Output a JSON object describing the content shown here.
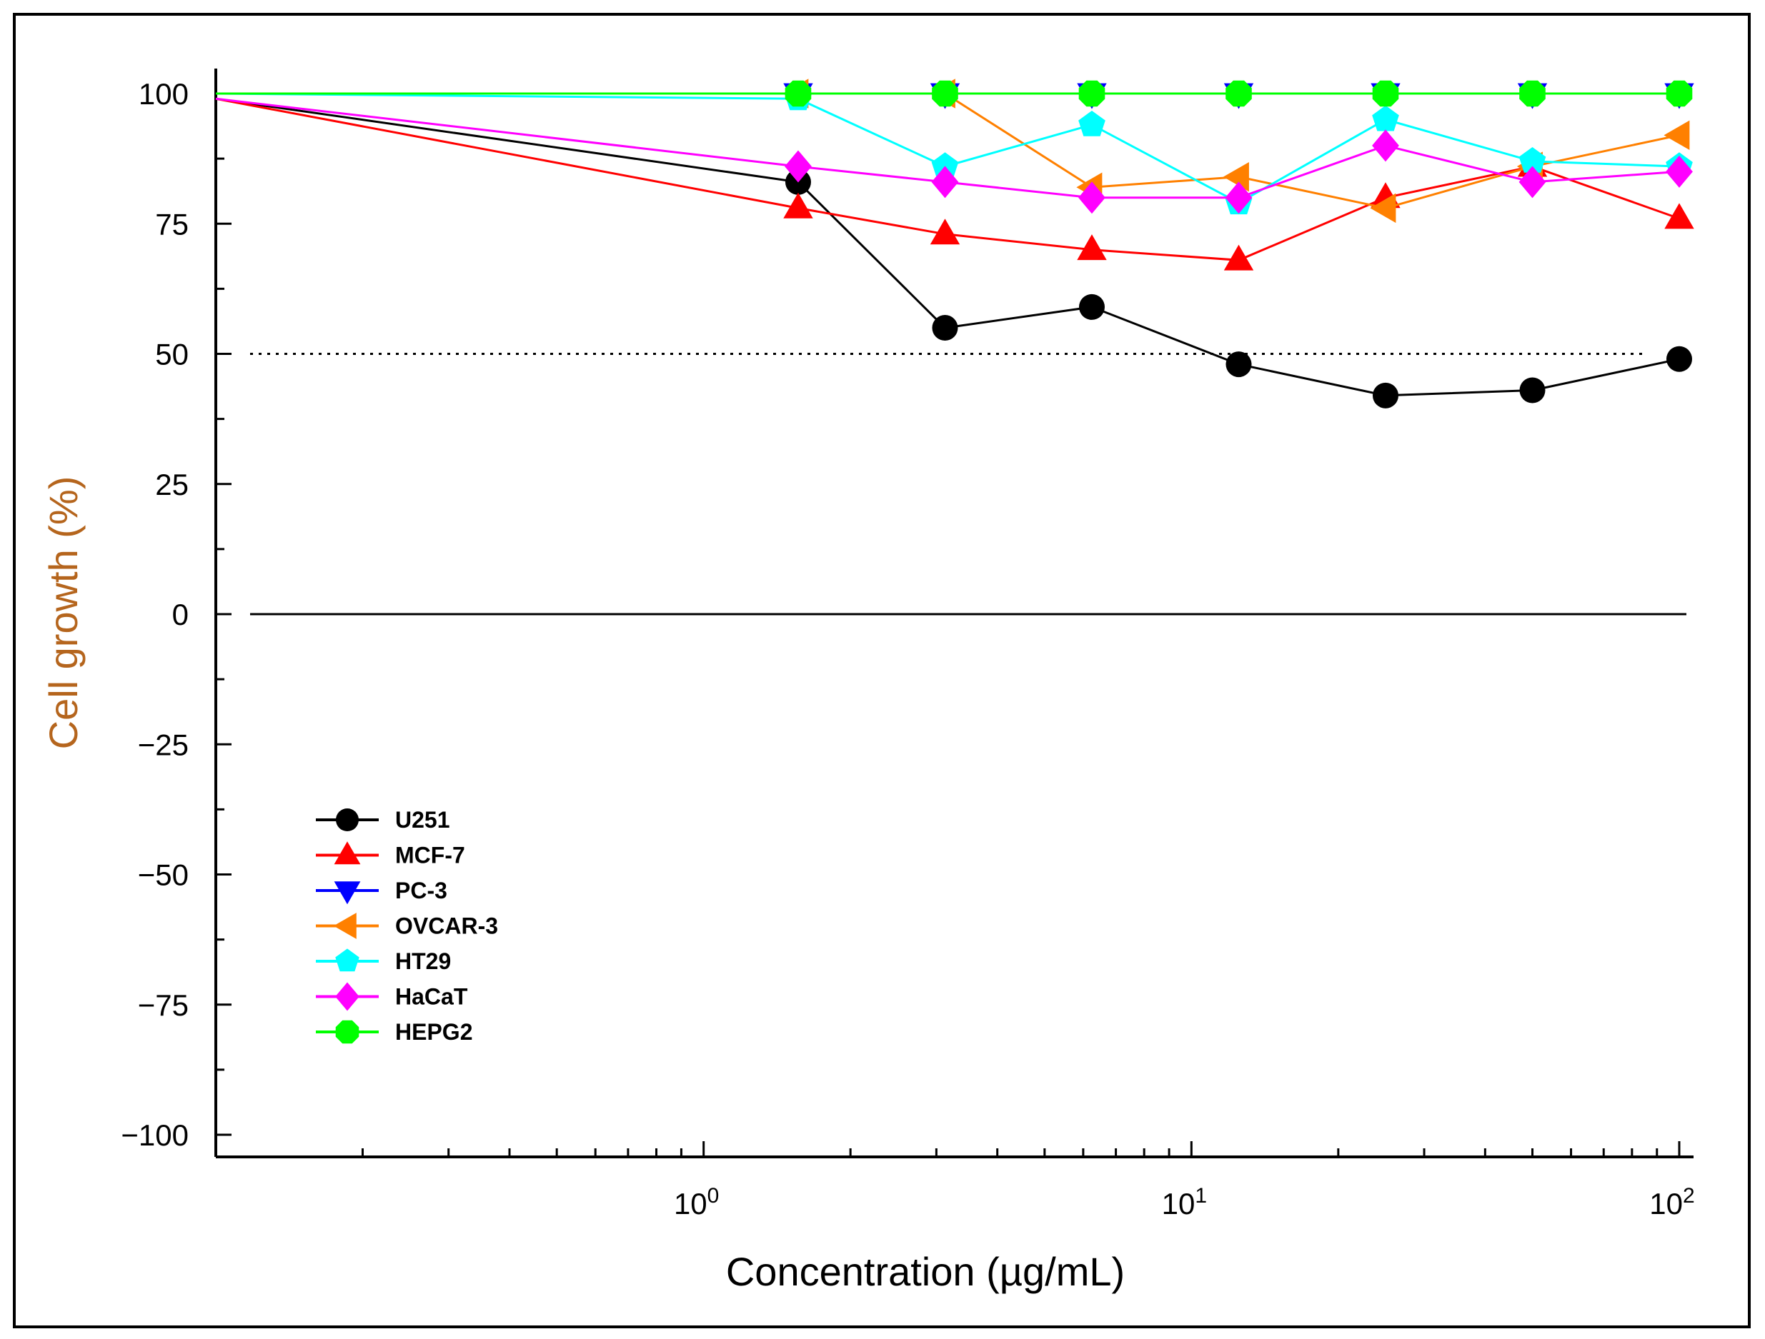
{
  "chart_data": {
    "type": "line",
    "xscale": "log",
    "xlim": [
      0.1,
      100
    ],
    "ylim": [
      -100,
      100
    ],
    "yticks": [
      100,
      75,
      50,
      25,
      0,
      -25,
      -50,
      -75,
      -100
    ],
    "ytick_labels": [
      "100",
      "75",
      "50",
      "25",
      "0",
      "−25",
      "−50",
      "−75",
      "−100"
    ],
    "xticks": [
      {
        "base": "10",
        "exp": "0"
      },
      {
        "base": "10",
        "exp": "1"
      },
      {
        "base": "10",
        "exp": "2"
      }
    ],
    "xlabel": "Concentration (µg/mL)",
    "ylabel": "Cell growth (%)",
    "xlabel_color": "#000000",
    "ylabel_color": "#b5651d",
    "legend_position": "lower-left",
    "reference_lines": [
      {
        "y": 50,
        "style": "dotted"
      },
      {
        "y": 0,
        "style": "solid"
      }
    ],
    "x": [
      0.1,
      1.5625,
      3.125,
      6.25,
      12.5,
      25,
      50,
      100
    ],
    "series": [
      {
        "name": "U251",
        "color": "#000000",
        "marker": "circle",
        "values": [
          99,
          83,
          55,
          59,
          48,
          42,
          43,
          49
        ]
      },
      {
        "name": "MCF-7",
        "color": "#ff0000",
        "marker": "triangle-up",
        "values": [
          99,
          78,
          73,
          70,
          68,
          80,
          86,
          76
        ]
      },
      {
        "name": "PC-3",
        "color": "#0000ff",
        "marker": "triangle-down",
        "values": [
          100,
          100,
          100,
          100,
          100,
          100,
          100,
          100
        ]
      },
      {
        "name": "OVCAR-3",
        "color": "#ff8000",
        "marker": "triangle-left",
        "values": [
          100,
          100,
          100,
          82,
          84,
          78,
          86,
          92
        ]
      },
      {
        "name": "HT29",
        "color": "#00ffff",
        "marker": "pentagon",
        "values": [
          100,
          99,
          86,
          94,
          79,
          95,
          87,
          86
        ]
      },
      {
        "name": "HaCaT",
        "color": "#ff00ff",
        "marker": "diamond",
        "values": [
          99,
          86,
          83,
          80,
          80,
          90,
          83,
          85
        ]
      },
      {
        "name": "HEPG2",
        "color": "#00ff00",
        "marker": "octagon",
        "values": [
          100,
          100,
          100,
          100,
          100,
          100,
          100,
          100
        ]
      }
    ]
  }
}
